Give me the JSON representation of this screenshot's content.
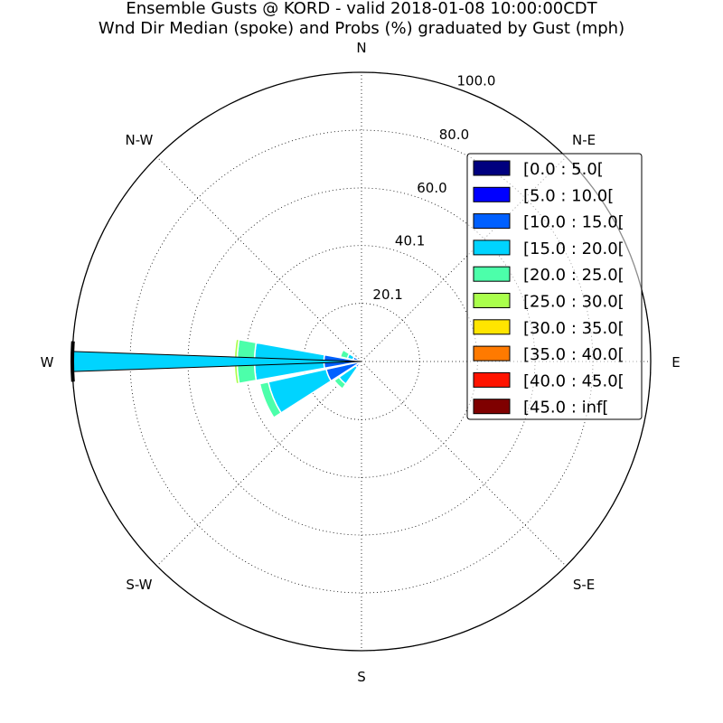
{
  "chart_data": {
    "type": "windrose",
    "title": [
      "Ensemble Gusts @ KORD - valid 2018-01-08 10:00:00CDT",
      "Wnd Dir Median (spoke) and Probs (%) graduated by Gust (mph)"
    ],
    "direction_labels": [
      "N",
      "N-E",
      "E",
      "S-E",
      "S",
      "S-W",
      "W",
      "N-W"
    ],
    "radial_ticks": [
      "20.1",
      "40.1",
      "60.0",
      "80.0",
      "100.0"
    ],
    "radial_max": 100,
    "grid": true,
    "legend_position": "top-right",
    "bins": [
      {
        "label": "[0.0 : 5.0[",
        "color": "#00007f"
      },
      {
        "label": "[5.0 : 10.0[",
        "color": "#0000ff"
      },
      {
        "label": "[10.0 : 15.0[",
        "color": "#0060ff"
      },
      {
        "label": "[15.0 : 20.0[",
        "color": "#00d4ff"
      },
      {
        "label": "[20.0 : 25.0[",
        "color": "#4cffaa"
      },
      {
        "label": "[25.0 : 30.0[",
        "color": "#aaff4c"
      },
      {
        "label": "[30.0 : 35.0[",
        "color": "#ffe500"
      },
      {
        "label": "[35.0 : 40.0[",
        "color": "#ff7a00"
      },
      {
        "label": "[40.0 : 45.0[",
        "color": "#ff1400"
      },
      {
        "label": "[45.0 : inf[",
        "color": "#7f0000"
      }
    ],
    "sectors": [
      {
        "direction": 292.5,
        "cumulative": [
          0,
          0,
          3,
          5,
          7.5,
          7.5,
          7.5,
          7.5,
          7.5,
          7.5
        ]
      },
      {
        "direction": 270,
        "cumulative": [
          0,
          0,
          13,
          37,
          43,
          44,
          44,
          44,
          44,
          44
        ]
      },
      {
        "direction": 247.5,
        "cumulative": [
          0,
          0,
          12.5,
          33,
          36,
          36,
          36,
          36,
          36,
          36
        ]
      },
      {
        "direction": 225,
        "cumulative": [
          0,
          0,
          2.5,
          9.5,
          11.5,
          11.5,
          11.5,
          11.5,
          11.5,
          11.5
        ]
      }
    ],
    "median_spoke": {
      "direction": 270,
      "value": 100,
      "color": "#00d4ff"
    }
  }
}
